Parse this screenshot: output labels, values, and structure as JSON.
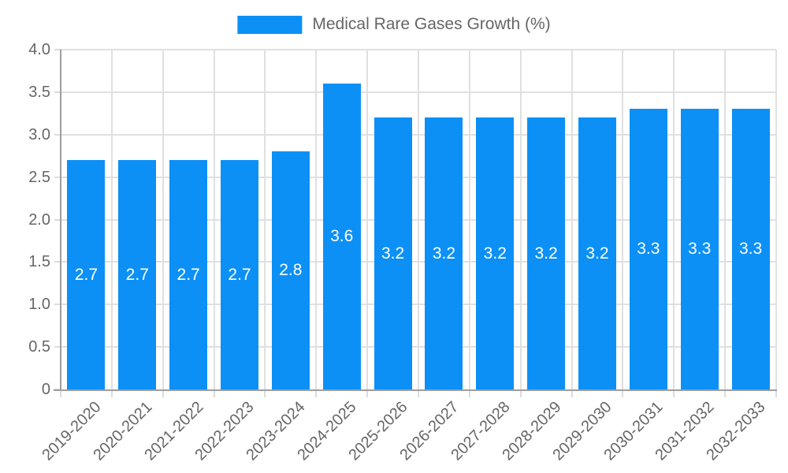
{
  "legend": {
    "label": "Medical Rare Gases Growth (%)"
  },
  "chart_data": {
    "type": "bar",
    "title": "",
    "legend_label": "Medical Rare Gases Growth (%)",
    "legend_position": "top-center",
    "categories": [
      "2019-2020",
      "2020-2021",
      "2021-2022",
      "2022-2023",
      "2023-2024",
      "2024-2025",
      "2025-2026",
      "2026-2027",
      "2027-2028",
      "2028-2029",
      "2029-2030",
      "2030-2031",
      "2031-2032",
      "2032-2033"
    ],
    "values": [
      2.7,
      2.7,
      2.7,
      2.7,
      2.8,
      3.6,
      3.2,
      3.2,
      3.2,
      3.2,
      3.2,
      3.3,
      3.3,
      3.3
    ],
    "value_labels": [
      "2.7",
      "2.7",
      "2.7",
      "2.7",
      "2.8",
      "3.6",
      "3.2",
      "3.2",
      "3.2",
      "3.2",
      "3.2",
      "3.3",
      "3.3",
      "3.3"
    ],
    "xlabel": "",
    "ylabel": "",
    "ylim": [
      0,
      4.0
    ],
    "y_ticks": [
      "0",
      "0.5",
      "1.0",
      "1.5",
      "2.0",
      "2.5",
      "3.0",
      "3.5",
      "4.0"
    ],
    "x_tick_rotation_deg": -45,
    "grid": true,
    "value_labels_inside_bars": true
  },
  "colors": {
    "bar": "#0C90F6",
    "grid": "#E0E0E0",
    "axis": "#9E9E9E",
    "text": "#666666",
    "value_label": "#FFFFFF",
    "background": "#FFFFFF"
  }
}
